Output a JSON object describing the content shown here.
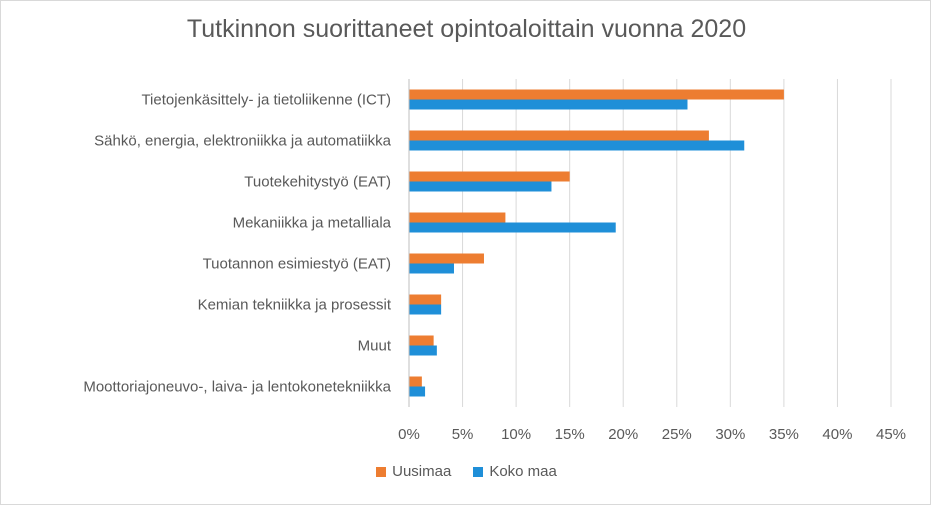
{
  "chart_data": {
    "type": "bar",
    "orientation": "horizontal",
    "title": "Tutkinnon suorittaneet opintoaloittain vuonna 2020",
    "categories": [
      "Tietojenkäsittely- ja tietoliikenne (ICT)",
      "Sähkö, energia, elektroniikka ja automatiikka",
      "Tuotekehitystyö (EAT)",
      "Mekaniikka ja metalliala",
      "Tuotannon esimiestyö (EAT)",
      "Kemian tekniikka ja prosessit",
      "Muut",
      "Moottoriajoneuvo-, laiva- ja lentokonetekniikka"
    ],
    "series": [
      {
        "name": "Uusimaa",
        "color": "#ed7d31",
        "values": [
          35,
          28,
          15,
          9,
          7,
          3,
          2.3,
          1.2
        ]
      },
      {
        "name": "Koko maa",
        "color": "#1f8fd8",
        "values": [
          26,
          31.3,
          13.3,
          19.3,
          4.2,
          3,
          2.6,
          1.5
        ]
      }
    ],
    "x_ticks": [
      "0%",
      "5%",
      "10%",
      "15%",
      "20%",
      "25%",
      "30%",
      "35%",
      "40%",
      "45%"
    ],
    "xlim": [
      0,
      45
    ],
    "grid": true,
    "legend_position": "bottom"
  }
}
